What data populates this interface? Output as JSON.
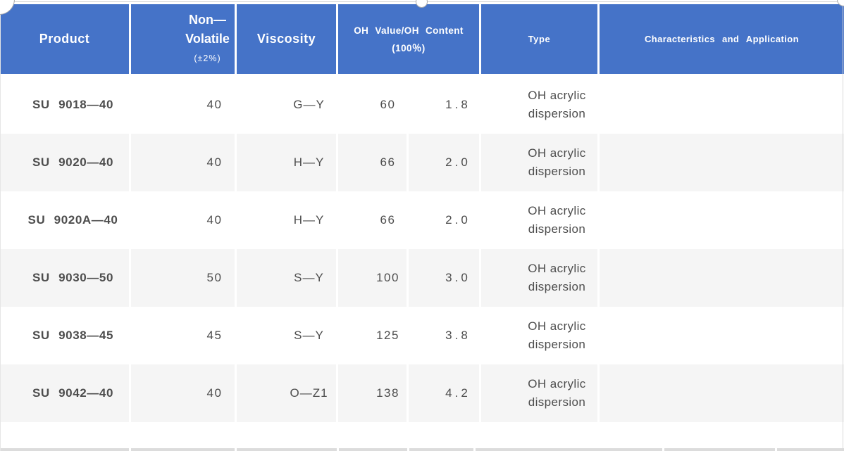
{
  "table": {
    "header": {
      "product": "Product",
      "non_volatile_line1": "Non—",
      "non_volatile_line2": "Volatile",
      "non_volatile_sub": "(±2%)",
      "viscosity": "Viscosity",
      "oh_line1": "OH Value/OH Content",
      "oh_line2": "(100％)",
      "type": "Type",
      "characteristics": "Characteristics and Application"
    },
    "rows": [
      {
        "product": "SU 9018—40",
        "non_volatile": "40",
        "viscosity": "G—Y",
        "oh_value": "60",
        "oh_content": "1.8",
        "type": "OH acrylic dispersion",
        "characteristics": ""
      },
      {
        "product": "SU 9020—40",
        "non_volatile": "40",
        "viscosity": "H—Y",
        "oh_value": "66",
        "oh_content": "2.0",
        "type": "OH acrylic dispersion",
        "characteristics": ""
      },
      {
        "product": "SU 9020A—40",
        "non_volatile": "40",
        "viscosity": "H—Y",
        "oh_value": "66",
        "oh_content": "2.0",
        "type": "OH acrylic dispersion",
        "characteristics": ""
      },
      {
        "product": "SU 9030—50",
        "non_volatile": "50",
        "viscosity": "S—Y",
        "oh_value": "100",
        "oh_content": "3.0",
        "type": "OH acrylic dispersion",
        "characteristics": ""
      },
      {
        "product": "SU 9038—45",
        "non_volatile": "45",
        "viscosity": "S—Y",
        "oh_value": "125",
        "oh_content": "3.8",
        "type": "OH acrylic dispersion",
        "characteristics": ""
      },
      {
        "product": "SU 9042—40",
        "non_volatile": "40",
        "viscosity": "O—Z1",
        "oh_value": "138",
        "oh_content": "4.2",
        "type": "OH acrylic dispersion",
        "characteristics": ""
      }
    ]
  },
  "colors": {
    "header_bg": "#4573c8",
    "header_text": "#ffffff",
    "alt_row_bg": "#f5f5f5",
    "product_text": "#1f1f1f",
    "value_text": "#4d4d4d",
    "selection_border": "#d2d2d2",
    "next_row_strip": "#dcdcdc"
  }
}
